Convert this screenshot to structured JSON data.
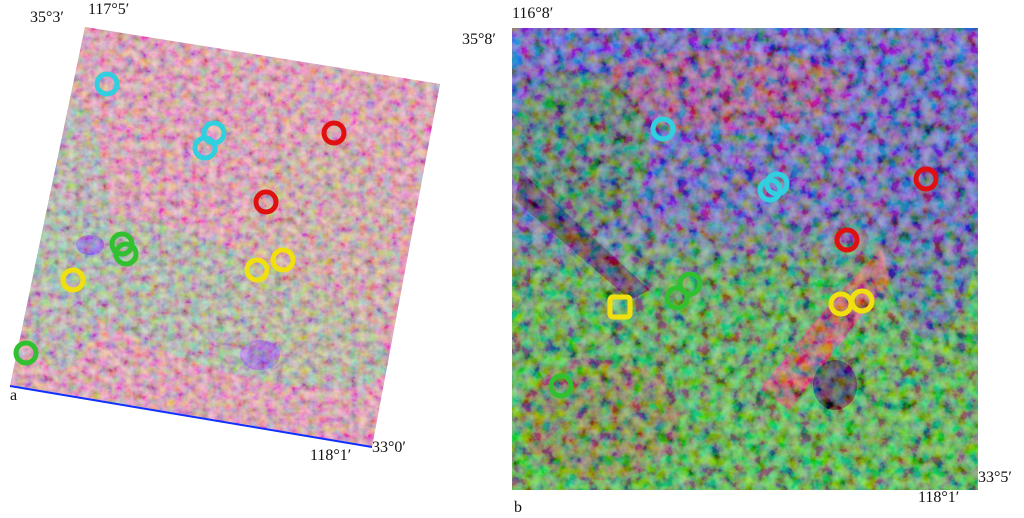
{
  "panels": [
    {
      "label": "a",
      "top_left_lat": "35°3′",
      "top_lon": "117°5′",
      "bottom_lon": "118°1′",
      "bottom_right_lat": "33°0′"
    },
    {
      "label": "b",
      "top_lon": "116°8′",
      "top_left_lat": "35°8′",
      "bottom_right_lat": "33°5′",
      "bottom_lon": "118°1′"
    }
  ]
}
